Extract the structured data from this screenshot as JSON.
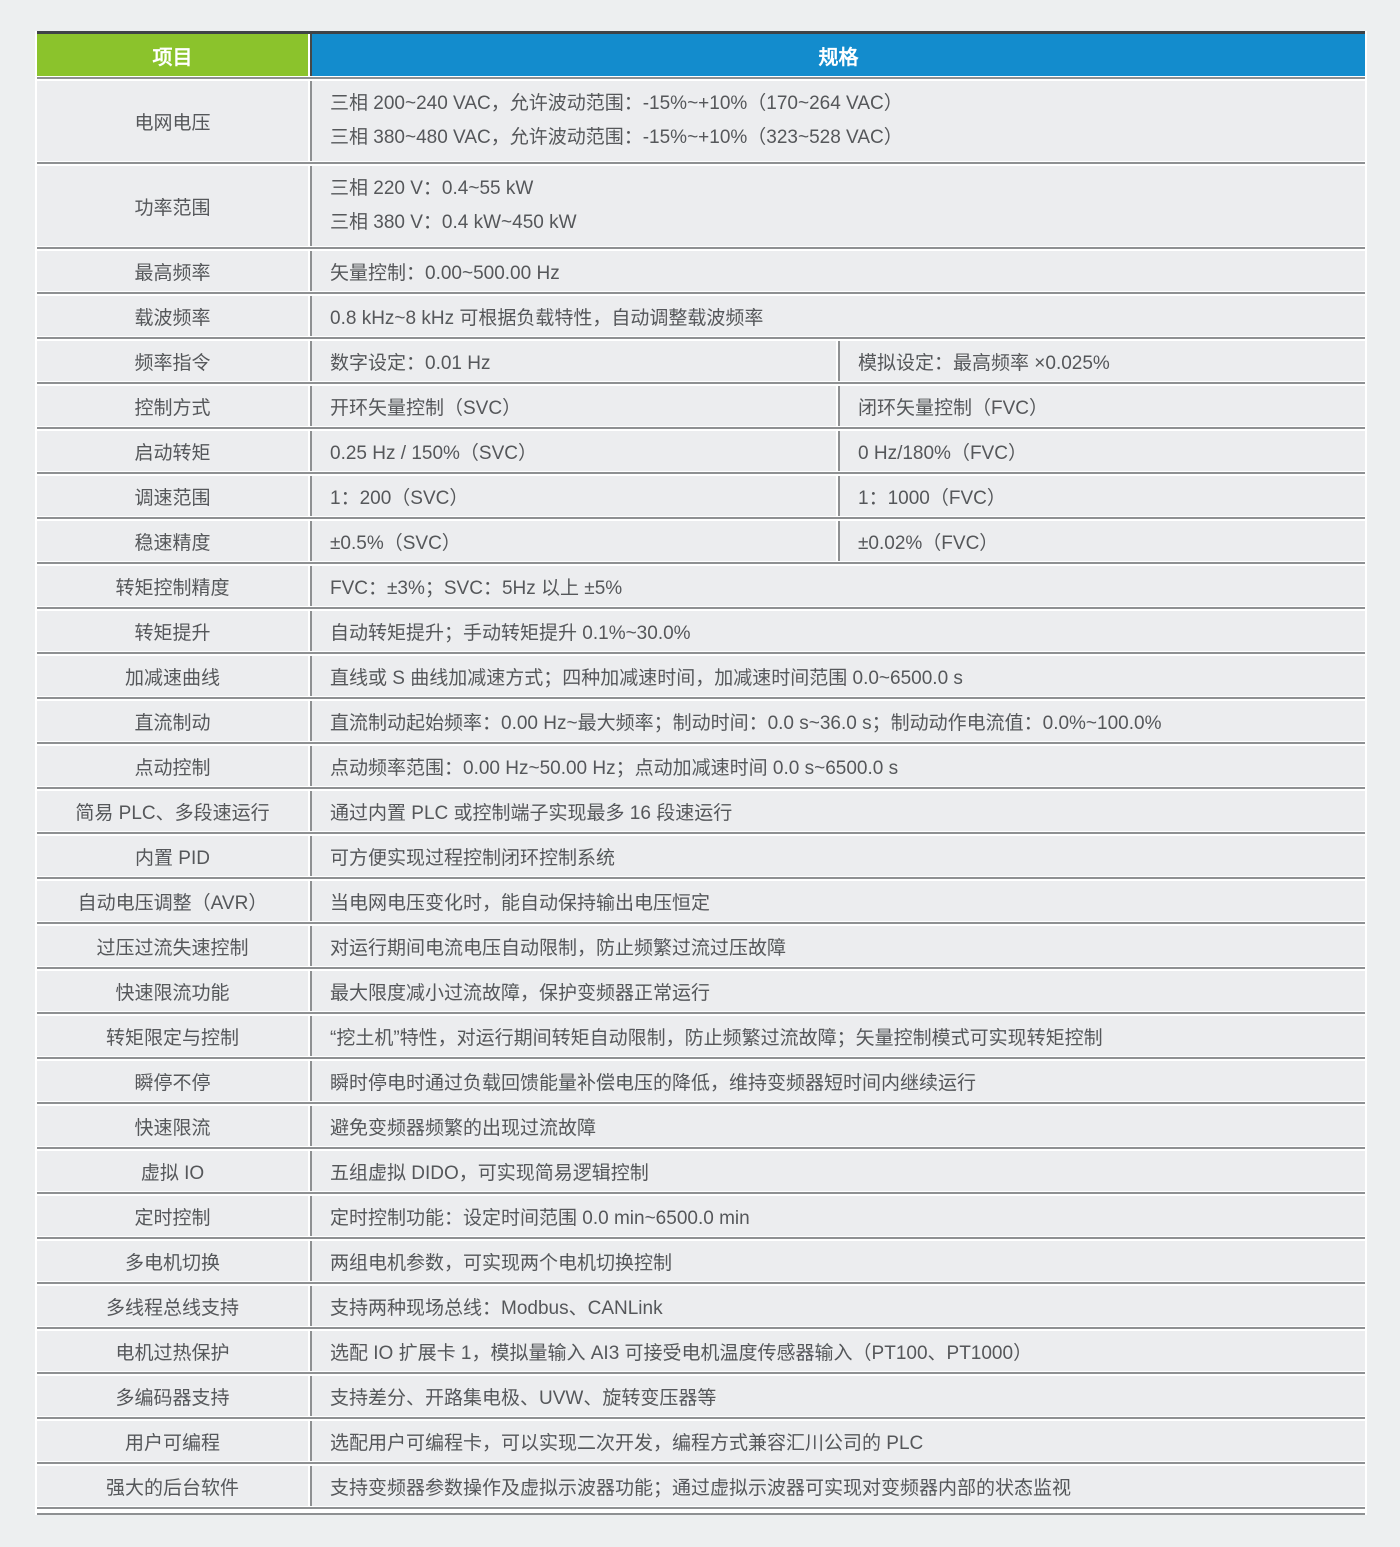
{
  "page": {
    "background": "#edeff0"
  },
  "table": {
    "colors": {
      "item_header_bg": "#8bc32c",
      "spec_header_bg": "#138ccd",
      "header_text": "#ffffff",
      "row_bg": "#ecedef",
      "divider_line": "#8e9092",
      "top_border": "#3f4347",
      "body_text": "#55575a"
    },
    "header": {
      "item": "项目",
      "spec": "规格"
    },
    "rows": [
      {
        "item": "电网电压",
        "lines": [
          "三相 200~240 VAC，允许波动范围：-15%~+10%（170~264 VAC）",
          "三相 380~480 VAC，允许波动范围：-15%~+10%（323~528 VAC）"
        ]
      },
      {
        "item": "功率范围",
        "lines": [
          "三相 220 V：0.4~55 kW",
          "三相 380 V：0.4 kW~450 kW"
        ]
      },
      {
        "item": "最高频率",
        "spec": "矢量控制：0.00~500.00 Hz"
      },
      {
        "item": "载波频率",
        "spec": "0.8 kHz~8 kHz 可根据负载特性，自动调整载波频率"
      },
      {
        "item": "频率指令",
        "left": "数字设定：0.01 Hz",
        "right": "模拟设定：最高频率 ×0.025%"
      },
      {
        "item": "控制方式",
        "left": "开环矢量控制（SVC）",
        "right": "闭环矢量控制（FVC）"
      },
      {
        "item": "启动转矩",
        "left": "0.25 Hz / 150%（SVC）",
        "right": "0 Hz/180%（FVC）"
      },
      {
        "item": "调速范围",
        "left": "1：200（SVC）",
        "right": "1：1000（FVC）"
      },
      {
        "item": "稳速精度",
        "left": "±0.5%（SVC）",
        "right": "±0.02%（FVC）"
      },
      {
        "item": "转矩控制精度",
        "spec": "FVC：±3%；SVC：5Hz 以上 ±5%"
      },
      {
        "item": "转矩提升",
        "spec": "自动转矩提升；手动转矩提升 0.1%~30.0%"
      },
      {
        "item": "加减速曲线",
        "spec": "直线或 S 曲线加减速方式；四种加减速时间，加减速时间范围 0.0~6500.0 s"
      },
      {
        "item": "直流制动",
        "spec": "直流制动起始频率：0.00 Hz~最大频率；制动时间：0.0 s~36.0 s；制动动作电流值：0.0%~100.0%"
      },
      {
        "item": "点动控制",
        "spec": "点动频率范围：0.00 Hz~50.00 Hz；点动加减速时间 0.0 s~6500.0 s"
      },
      {
        "item": "简易 PLC、多段速运行",
        "spec": "通过内置 PLC 或控制端子实现最多 16 段速运行"
      },
      {
        "item": "内置 PID",
        "spec": "可方便实现过程控制闭环控制系统"
      },
      {
        "item": "自动电压调整（AVR）",
        "spec": "当电网电压变化时，能自动保持输出电压恒定"
      },
      {
        "item": "过压过流失速控制",
        "spec": "对运行期间电流电压自动限制，防止频繁过流过压故障"
      },
      {
        "item": "快速限流功能",
        "spec": "最大限度减小过流故障，保护变频器正常运行"
      },
      {
        "item": "转矩限定与控制",
        "spec": "“挖土机”特性，对运行期间转矩自动限制，防止频繁过流故障；矢量控制模式可实现转矩控制"
      },
      {
        "item": "瞬停不停",
        "spec": "瞬时停电时通过负载回馈能量补偿电压的降低，维持变频器短时间内继续运行"
      },
      {
        "item": "快速限流",
        "spec": "避免变频器频繁的出现过流故障"
      },
      {
        "item": "虚拟 IO",
        "spec": "五组虚拟 DIDO，可实现简易逻辑控制"
      },
      {
        "item": "定时控制",
        "spec": "定时控制功能：设定时间范围 0.0 min~6500.0 min"
      },
      {
        "item": "多电机切换",
        "spec": "两组电机参数，可实现两个电机切换控制"
      },
      {
        "item": "多线程总线支持",
        "spec": "支持两种现场总线：Modbus、CANLink"
      },
      {
        "item": "电机过热保护",
        "spec": "选配 IO 扩展卡 1，模拟量输入 AI3 可接受电机温度传感器输入（PT100、PT1000）"
      },
      {
        "item": "多编码器支持",
        "spec": "支持差分、开路集电极、UVW、旋转变压器等"
      },
      {
        "item": "用户可编程",
        "spec": "选配用户可编程卡，可以实现二次开发，编程方式兼容汇川公司的 PLC"
      },
      {
        "item": "强大的后台软件",
        "spec": "支持变频器参数操作及虚拟示波器功能；通过虚拟示波器可实现对变频器内部的状态监视"
      }
    ]
  }
}
